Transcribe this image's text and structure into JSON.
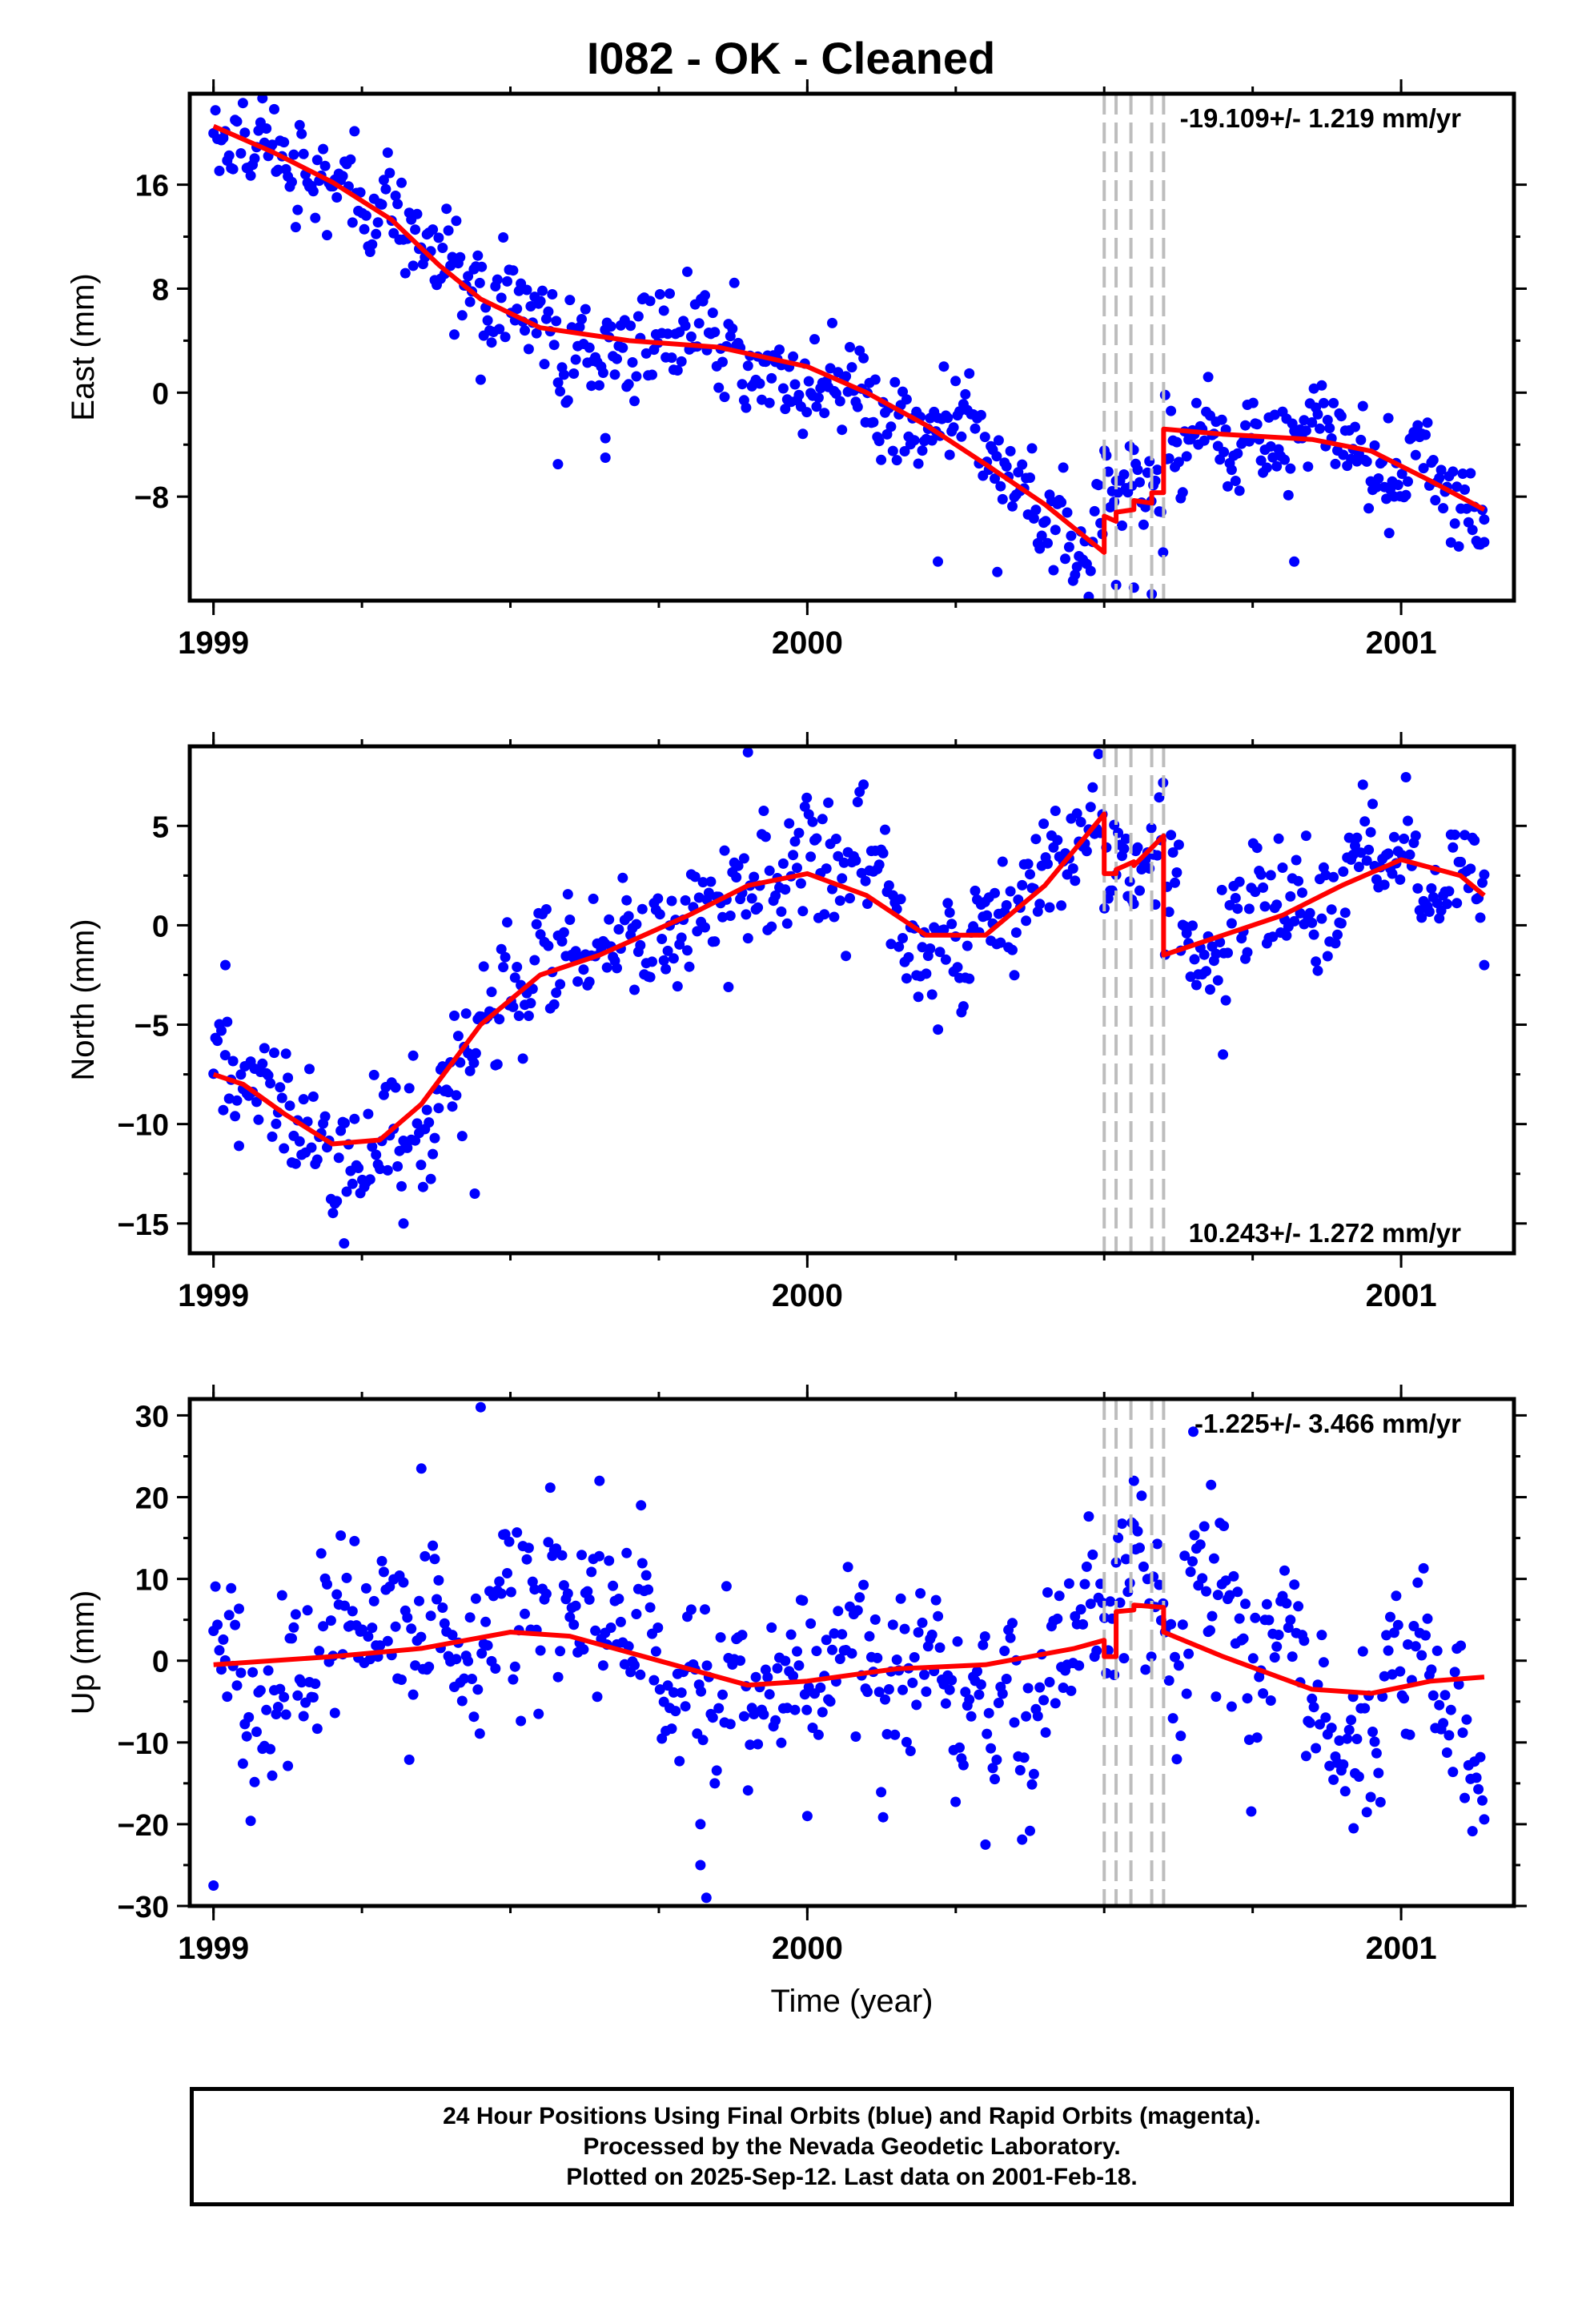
{
  "title": "I082  - OK - Cleaned",
  "footer": {
    "line1": "24 Hour Positions Using Final Orbits (blue) and Rapid Orbits (magenta).",
    "line2": "Processed by the Nevada Geodetic Laboratory.",
    "line3": "Plotted on 2025-Sep-12. Last data on 2001-Feb-18."
  },
  "colors": {
    "points": "#0000ff",
    "model": "#ff0000",
    "dashes": "#bdbdbd",
    "frame": "#000000"
  },
  "chart_data": [
    {
      "type": "scatter",
      "name": "east",
      "xlabel": "",
      "ylabel": "East (mm)",
      "rate_label": "-19.109+/- 1.219 mm/yr",
      "rate_position": "top-right",
      "xlim": [
        1998.96,
        2001.19
      ],
      "ylim": [
        -16,
        23
      ],
      "x_ticks": [
        1999,
        2000,
        2001
      ],
      "x_tick_labels": [
        "1999",
        "2000",
        "2001"
      ],
      "y_ticks": [
        -8,
        0,
        8,
        16
      ],
      "y_tick_labels": [
        "−8",
        "0",
        "8",
        "16"
      ],
      "grid": false,
      "model_x": [
        1999.0,
        1999.1,
        1999.2,
        1999.3,
        1999.38,
        1999.45,
        1999.55,
        1999.7,
        1999.85,
        2000.0,
        2000.1,
        2000.2,
        2000.3,
        2000.4,
        2000.5,
        2000.5,
        2000.52,
        2000.52,
        2000.55,
        2000.55,
        2000.58,
        2000.58,
        2000.6,
        2000.6,
        2000.7,
        2000.85,
        2000.95,
        2001.05,
        2001.14
      ],
      "model_y": [
        20.5,
        18.5,
        16.2,
        13.3,
        9.8,
        7.2,
        5.0,
        4.0,
        3.5,
        2.0,
        0.0,
        -2.5,
        -5.5,
        -8.6,
        -12.3,
        -9.5,
        -9.9,
        -9.2,
        -9.0,
        -8.3,
        -8.5,
        -7.7,
        -7.7,
        -2.8,
        -3.2,
        -3.6,
        -4.5,
        -6.8,
        -9.0
      ],
      "model_color": "#ff0000",
      "points_color": "#0000ff",
      "event_lines": [
        2000.5,
        2000.52,
        2000.545,
        2000.58,
        2000.6
      ],
      "noise": 2.2,
      "point_count": 650,
      "outliers": [
        [
          2000.58,
          -15.5
        ],
        [
          2000.52,
          -14.8
        ],
        [
          2000.55,
          -15.0
        ],
        [
          1999.58,
          -5.5
        ],
        [
          1999.66,
          -3.5
        ],
        [
          1999.66,
          -5.0
        ],
        [
          1999.45,
          1.0
        ],
        [
          2000.82,
          -13.0
        ],
        [
          2000.98,
          -10.8
        ],
        [
          2001.14,
          -11.5
        ],
        [
          2000.22,
          -13.0
        ],
        [
          2000.32,
          -13.8
        ]
      ]
    },
    {
      "type": "scatter",
      "name": "north",
      "xlabel": "",
      "ylabel": "North (mm)",
      "rate_label": "10.243+/- 1.272 mm/yr",
      "rate_position": "bottom-right",
      "xlim": [
        1998.96,
        2001.19
      ],
      "ylim": [
        -16.5,
        9
      ],
      "x_ticks": [
        1999,
        2000,
        2001
      ],
      "x_tick_labels": [
        "1999",
        "2000",
        "2001"
      ],
      "y_ticks": [
        -15,
        -10,
        -5,
        0,
        5
      ],
      "y_tick_labels": [
        "−15",
        "−10",
        "−5",
        "0",
        "5"
      ],
      "grid": false,
      "model_x": [
        1999.0,
        1999.05,
        1999.12,
        1999.2,
        1999.28,
        1999.35,
        1999.45,
        1999.55,
        1999.65,
        1999.8,
        1999.9,
        2000.0,
        2000.1,
        2000.2,
        2000.3,
        2000.4,
        2000.5,
        2000.5,
        2000.52,
        2000.52,
        2000.55,
        2000.55,
        2000.6,
        2000.6,
        2000.7,
        2000.8,
        2000.9,
        2001.0,
        2001.1,
        2001.14
      ],
      "model_y": [
        -7.5,
        -8.0,
        -9.5,
        -11.0,
        -10.8,
        -9.0,
        -5.0,
        -2.5,
        -1.5,
        0.5,
        2.0,
        2.6,
        1.5,
        -0.5,
        -0.5,
        2.0,
        5.6,
        2.6,
        2.6,
        2.8,
        3.2,
        3.0,
        4.5,
        -1.5,
        -0.5,
        0.5,
        2.0,
        3.3,
        2.5,
        1.5
      ],
      "model_color": "#ff0000",
      "points_color": "#0000ff",
      "event_lines": [
        2000.5,
        2000.52,
        2000.545,
        2000.58,
        2000.6
      ],
      "noise": 1.8,
      "point_count": 650,
      "outliers": [
        [
          1999.9,
          8.7
        ],
        [
          2000.7,
          -6.5
        ],
        [
          1999.02,
          -2.0
        ],
        [
          1999.22,
          -16.0
        ],
        [
          2001.14,
          -2.0
        ],
        [
          1999.44,
          -13.5
        ],
        [
          1999.32,
          -15.0
        ]
      ]
    },
    {
      "type": "scatter",
      "name": "up",
      "xlabel": "Time (year)",
      "ylabel": "Up (mm)",
      "rate_label": "-1.225+/- 3.466 mm/yr",
      "rate_position": "top-right",
      "xlim": [
        1998.96,
        2001.19
      ],
      "ylim": [
        -30,
        32
      ],
      "x_ticks": [
        1999,
        2000,
        2001
      ],
      "x_tick_labels": [
        "1999",
        "2000",
        "2001"
      ],
      "y_ticks": [
        -30,
        -20,
        -10,
        0,
        10,
        20,
        30
      ],
      "y_tick_labels": [
        "−30",
        "−20",
        "−10",
        "0",
        "10",
        "20",
        "30"
      ],
      "grid": false,
      "model_x": [
        1999.0,
        1999.2,
        1999.35,
        1999.5,
        1999.6,
        1999.75,
        1999.9,
        2000.0,
        2000.15,
        2000.3,
        2000.45,
        2000.5,
        2000.5,
        2000.52,
        2000.52,
        2000.55,
        2000.55,
        2000.6,
        2000.6,
        2000.7,
        2000.85,
        2000.95,
        2001.05,
        2001.14
      ],
      "model_y": [
        -0.5,
        0.5,
        1.5,
        3.5,
        3.0,
        0.0,
        -3.0,
        -2.5,
        -1.0,
        -0.5,
        1.5,
        2.5,
        0.5,
        0.5,
        6.0,
        6.2,
        6.8,
        6.5,
        3.5,
        0.5,
        -3.5,
        -4.0,
        -2.5,
        -2.0
      ],
      "model_color": "#ff0000",
      "points_color": "#0000ff",
      "event_lines": [
        2000.5,
        2000.52,
        2000.545,
        2000.58,
        2000.6
      ],
      "noise": 6.5,
      "point_count": 650,
      "outliers": [
        [
          1999.45,
          31.0
        ],
        [
          1999.35,
          23.5
        ],
        [
          1999.0,
          -27.5
        ],
        [
          1999.83,
          -29.0
        ],
        [
          2000.3,
          -22.5
        ],
        [
          1999.82,
          -25.0
        ],
        [
          2000.65,
          28.0
        ],
        [
          2000.55,
          22.0
        ],
        [
          2000.68,
          21.5
        ],
        [
          1999.65,
          22.0
        ],
        [
          1999.72,
          19.0
        ],
        [
          2000.92,
          -20.5
        ],
        [
          1999.82,
          -20.0
        ],
        [
          2000.0,
          -19.0
        ]
      ]
    }
  ]
}
